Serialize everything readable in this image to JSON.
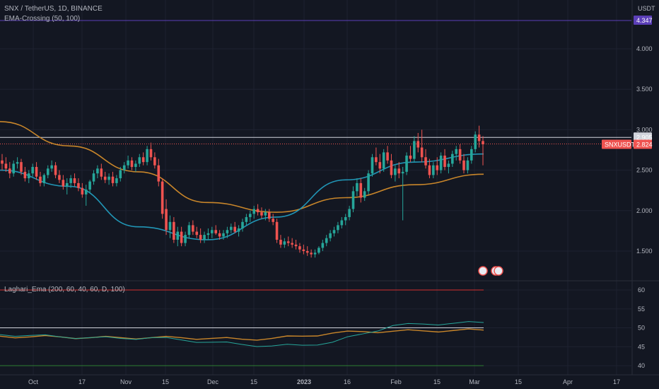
{
  "header": {
    "symbol_line": "SNX / TetherUS, 1D, BINANCE",
    "indicator1": "EMA-Crossing (50, 100)",
    "indicator2": "Laghari_Ema (200, 60, 40, 60, D, 100)",
    "currency": "USDT"
  },
  "price_axis": {
    "ticks": [
      "4.000",
      "3.500",
      "3.000",
      "2.500",
      "2.000",
      "1.500"
    ],
    "tick_values": [
      4.0,
      3.5,
      3.0,
      2.5,
      2.0,
      1.5
    ],
    "badges": {
      "top_line": "4.347",
      "white_line": "2.905",
      "symbol": "SNXUSDT",
      "last": "2.824"
    }
  },
  "osc_axis": {
    "ticks": [
      "60",
      "55",
      "50",
      "45",
      "40"
    ],
    "tick_values": [
      60,
      55,
      50,
      45,
      40
    ]
  },
  "time_axis": {
    "labels": [
      "Oct",
      "17",
      "Nov",
      "15",
      "Dec",
      "15",
      "2023",
      "16",
      "Feb",
      "15",
      "Mar",
      "15",
      "Apr",
      "17"
    ]
  },
  "colors": {
    "background": "#131722",
    "up": "#26a69a",
    "down": "#ef5350",
    "ema50": "#2196b6",
    "ema100": "#c9862a",
    "top_line": "#5b3fb8",
    "red_level": "#d32f2f",
    "green_level": "#2e7d32",
    "white_line": "#d1d4dc"
  },
  "chart_data": {
    "type": "candlestick",
    "ylim": [
      1.2,
      4.5
    ],
    "levels": {
      "top_line": 4.347,
      "white_line": 2.905,
      "last": 2.824
    },
    "ohlc": [
      [
        2.62,
        2.7,
        2.5,
        2.58
      ],
      [
        2.58,
        2.66,
        2.48,
        2.52
      ],
      [
        2.52,
        2.6,
        2.4,
        2.46
      ],
      [
        2.46,
        2.62,
        2.42,
        2.58
      ],
      [
        2.58,
        2.66,
        2.52,
        2.6
      ],
      [
        2.6,
        2.64,
        2.44,
        2.48
      ],
      [
        2.48,
        2.54,
        2.36,
        2.4
      ],
      [
        2.4,
        2.5,
        2.34,
        2.46
      ],
      [
        2.46,
        2.58,
        2.42,
        2.54
      ],
      [
        2.54,
        2.6,
        2.38,
        2.42
      ],
      [
        2.42,
        2.48,
        2.3,
        2.34
      ],
      [
        2.34,
        2.46,
        2.3,
        2.44
      ],
      [
        2.44,
        2.56,
        2.4,
        2.52
      ],
      [
        2.52,
        2.62,
        2.48,
        2.56
      ],
      [
        2.56,
        2.6,
        2.4,
        2.44
      ],
      [
        2.44,
        2.5,
        2.34,
        2.38
      ],
      [
        2.38,
        2.44,
        2.26,
        2.3
      ],
      [
        2.3,
        2.4,
        2.2,
        2.34
      ],
      [
        2.34,
        2.44,
        2.28,
        2.4
      ],
      [
        2.4,
        2.46,
        2.3,
        2.34
      ],
      [
        2.34,
        2.4,
        2.24,
        2.28
      ],
      [
        2.28,
        2.34,
        2.16,
        2.2
      ],
      [
        2.2,
        2.32,
        2.06,
        2.26
      ],
      [
        2.26,
        2.38,
        2.22,
        2.36
      ],
      [
        2.36,
        2.5,
        2.32,
        2.46
      ],
      [
        2.46,
        2.56,
        2.4,
        2.52
      ],
      [
        2.52,
        2.58,
        2.38,
        2.42
      ],
      [
        2.42,
        2.48,
        2.34,
        2.38
      ],
      [
        2.38,
        2.46,
        2.32,
        2.42
      ],
      [
        2.42,
        2.48,
        2.3,
        2.34
      ],
      [
        2.34,
        2.44,
        2.3,
        2.4
      ],
      [
        2.4,
        2.54,
        2.36,
        2.5
      ],
      [
        2.5,
        2.6,
        2.46,
        2.56
      ],
      [
        2.56,
        2.68,
        2.52,
        2.62
      ],
      [
        2.62,
        2.66,
        2.5,
        2.54
      ],
      [
        2.54,
        2.62,
        2.48,
        2.58
      ],
      [
        2.58,
        2.7,
        2.54,
        2.66
      ],
      [
        2.66,
        2.72,
        2.56,
        2.6
      ],
      [
        2.6,
        2.8,
        2.56,
        2.76
      ],
      [
        2.76,
        2.84,
        2.62,
        2.66
      ],
      [
        2.66,
        2.72,
        2.52,
        2.56
      ],
      [
        2.56,
        2.64,
        2.3,
        2.36
      ],
      [
        2.36,
        2.4,
        1.9,
        1.96
      ],
      [
        2.02,
        2.14,
        1.7,
        1.76
      ],
      [
        1.76,
        1.94,
        1.66,
        1.86
      ],
      [
        1.86,
        1.92,
        1.6,
        1.64
      ],
      [
        1.64,
        1.8,
        1.56,
        1.74
      ],
      [
        1.74,
        1.8,
        1.56,
        1.6
      ],
      [
        1.6,
        1.74,
        1.56,
        1.7
      ],
      [
        1.7,
        1.86,
        1.66,
        1.82
      ],
      [
        1.82,
        1.88,
        1.7,
        1.74
      ],
      [
        1.74,
        1.8,
        1.66,
        1.7
      ],
      [
        1.7,
        1.78,
        1.6,
        1.64
      ],
      [
        1.64,
        1.74,
        1.6,
        1.7
      ],
      [
        1.7,
        1.78,
        1.64,
        1.72
      ],
      [
        1.72,
        1.8,
        1.66,
        1.76
      ],
      [
        1.76,
        1.82,
        1.7,
        1.72
      ],
      [
        1.72,
        1.76,
        1.64,
        1.68
      ],
      [
        1.68,
        1.76,
        1.64,
        1.72
      ],
      [
        1.72,
        1.8,
        1.66,
        1.76
      ],
      [
        1.76,
        1.84,
        1.72,
        1.8
      ],
      [
        1.8,
        1.86,
        1.72,
        1.74
      ],
      [
        1.74,
        1.82,
        1.68,
        1.78
      ],
      [
        1.78,
        1.9,
        1.74,
        1.86
      ],
      [
        1.86,
        1.96,
        1.82,
        1.92
      ],
      [
        1.92,
        2.0,
        1.86,
        1.96
      ],
      [
        1.96,
        2.06,
        1.9,
        2.02
      ],
      [
        2.02,
        2.08,
        1.94,
        1.98
      ],
      [
        1.98,
        2.04,
        1.9,
        1.94
      ],
      [
        1.94,
        2.02,
        1.88,
        1.98
      ],
      [
        1.98,
        2.02,
        1.86,
        1.9
      ],
      [
        1.9,
        1.96,
        1.82,
        1.86
      ],
      [
        1.86,
        1.9,
        1.6,
        1.64
      ],
      [
        1.64,
        1.7,
        1.54,
        1.58
      ],
      [
        1.58,
        1.66,
        1.54,
        1.62
      ],
      [
        1.62,
        1.68,
        1.56,
        1.6
      ],
      [
        1.6,
        1.66,
        1.54,
        1.58
      ],
      [
        1.58,
        1.64,
        1.52,
        1.56
      ],
      [
        1.56,
        1.6,
        1.48,
        1.52
      ],
      [
        1.52,
        1.58,
        1.46,
        1.5
      ],
      [
        1.5,
        1.56,
        1.44,
        1.48
      ],
      [
        1.48,
        1.52,
        1.42,
        1.46
      ],
      [
        1.46,
        1.52,
        1.42,
        1.48
      ],
      [
        1.48,
        1.56,
        1.46,
        1.54
      ],
      [
        1.54,
        1.64,
        1.5,
        1.6
      ],
      [
        1.6,
        1.7,
        1.56,
        1.66
      ],
      [
        1.66,
        1.76,
        1.62,
        1.72
      ],
      [
        1.72,
        1.8,
        1.68,
        1.76
      ],
      [
        1.76,
        1.86,
        1.72,
        1.82
      ],
      [
        1.82,
        1.92,
        1.78,
        1.88
      ],
      [
        1.88,
        1.96,
        1.82,
        1.92
      ],
      [
        1.92,
        2.06,
        1.88,
        2.02
      ],
      [
        2.02,
        2.3,
        1.98,
        2.24
      ],
      [
        2.24,
        2.4,
        2.18,
        2.34
      ],
      [
        2.34,
        2.4,
        2.1,
        2.16
      ],
      [
        2.16,
        2.28,
        2.12,
        2.24
      ],
      [
        2.24,
        2.5,
        2.2,
        2.46
      ],
      [
        2.46,
        2.7,
        2.42,
        2.66
      ],
      [
        2.66,
        2.78,
        2.56,
        2.6
      ],
      [
        2.6,
        2.7,
        2.46,
        2.52
      ],
      [
        2.52,
        2.76,
        2.48,
        2.72
      ],
      [
        2.72,
        2.8,
        2.58,
        2.62
      ],
      [
        2.62,
        2.7,
        2.4,
        2.44
      ],
      [
        2.44,
        2.56,
        2.36,
        2.52
      ],
      [
        2.52,
        2.6,
        2.4,
        2.46
      ],
      [
        2.46,
        2.54,
        1.88,
        2.48
      ],
      [
        2.48,
        2.72,
        2.44,
        2.68
      ],
      [
        2.68,
        2.8,
        2.6,
        2.64
      ],
      [
        2.64,
        2.92,
        2.6,
        2.86
      ],
      [
        2.86,
        2.96,
        2.72,
        2.78
      ],
      [
        2.78,
        3.0,
        2.6,
        2.66
      ],
      [
        2.66,
        2.76,
        2.52,
        2.56
      ],
      [
        2.56,
        2.64,
        2.4,
        2.44
      ],
      [
        2.44,
        2.6,
        2.4,
        2.56
      ],
      [
        2.56,
        2.66,
        2.44,
        2.5
      ],
      [
        2.5,
        2.72,
        2.46,
        2.68
      ],
      [
        2.68,
        2.76,
        2.5,
        2.54
      ],
      [
        2.54,
        2.62,
        2.46,
        2.58
      ],
      [
        2.58,
        2.74,
        2.54,
        2.7
      ],
      [
        2.7,
        2.8,
        2.62,
        2.76
      ],
      [
        2.76,
        2.82,
        2.58,
        2.62
      ],
      [
        2.62,
        2.7,
        2.46,
        2.5
      ],
      [
        2.5,
        2.66,
        2.46,
        2.62
      ],
      [
        2.62,
        2.8,
        2.58,
        2.76
      ],
      [
        2.76,
        2.98,
        2.72,
        2.94
      ],
      [
        2.94,
        3.05,
        2.78,
        2.86
      ],
      [
        2.86,
        2.92,
        2.56,
        2.82
      ]
    ],
    "ema50": [
      2.5,
      2.3,
      1.8,
      1.64,
      1.92,
      2.38,
      2.6,
      2.7
    ],
    "ema100": [
      3.1,
      2.8,
      2.48,
      2.1,
      1.98,
      2.16,
      2.32,
      2.45
    ],
    "oscillator": {
      "red_level": 60,
      "green_level": 40,
      "white_level": 50,
      "blue": [
        48.2,
        48.0,
        47.6,
        47.4,
        47.2,
        47.4,
        46.8,
        46.2,
        45.6,
        45.2,
        45.4,
        46.2,
        48.4,
        50.6,
        51.0,
        51.2,
        51.4
      ],
      "orange": [
        47.8,
        47.6,
        47.6,
        47.4,
        47.4,
        47.4,
        47.4,
        47.2,
        47.0,
        47.2,
        47.8,
        48.6,
        49.0,
        49.1,
        49.2,
        49.3,
        49.4
      ]
    }
  }
}
